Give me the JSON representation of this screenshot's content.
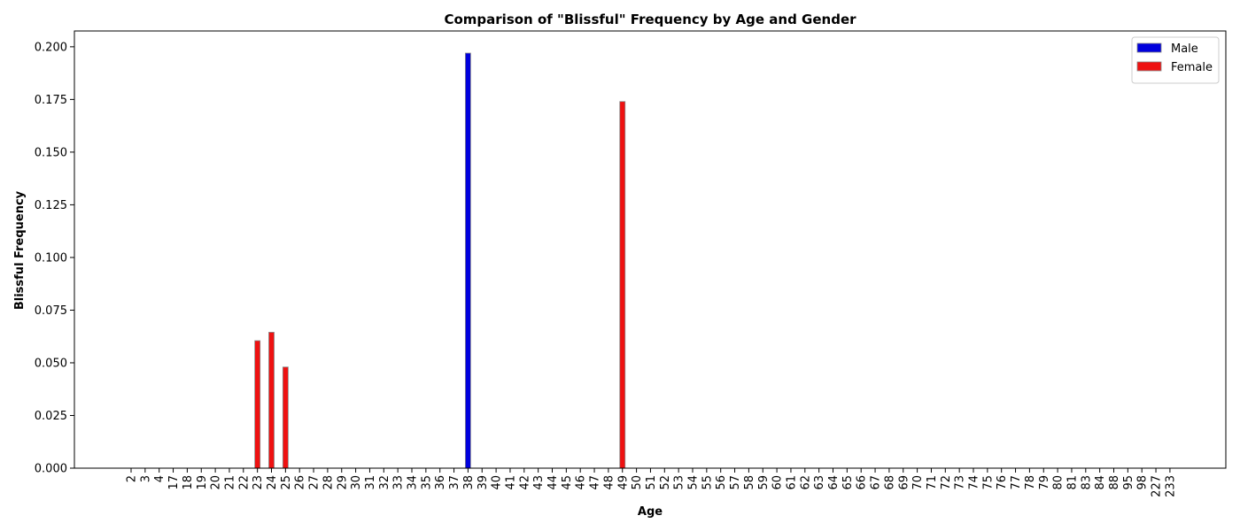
{
  "chart_data": {
    "type": "bar",
    "title": "Comparison of \"Blissful\" Frequency by Age and Gender",
    "xlabel": "Age",
    "ylabel": "Blissful Frequency",
    "ylim": [
      0,
      0.2075
    ],
    "yticks": [
      "0.000",
      "0.025",
      "0.050",
      "0.075",
      "0.100",
      "0.125",
      "0.150",
      "0.175",
      "0.200"
    ],
    "ytick_values": [
      0,
      0.025,
      0.05,
      0.075,
      0.1,
      0.125,
      0.15,
      0.175,
      0.2
    ],
    "categories": [
      "2",
      "3",
      "4",
      "17",
      "18",
      "19",
      "20",
      "21",
      "22",
      "23",
      "24",
      "25",
      "26",
      "27",
      "28",
      "29",
      "30",
      "31",
      "32",
      "33",
      "34",
      "35",
      "36",
      "37",
      "38",
      "39",
      "40",
      "41",
      "42",
      "43",
      "44",
      "45",
      "46",
      "47",
      "48",
      "49",
      "50",
      "51",
      "52",
      "53",
      "54",
      "55",
      "56",
      "57",
      "58",
      "59",
      "60",
      "61",
      "62",
      "63",
      "64",
      "65",
      "66",
      "67",
      "68",
      "69",
      "70",
      "71",
      "72",
      "73",
      "74",
      "75",
      "76",
      "77",
      "78",
      "79",
      "80",
      "81",
      "83",
      "84",
      "88",
      "95",
      "98",
      "227",
      "233"
    ],
    "series": [
      {
        "name": "Male",
        "color": "#0000dd",
        "values": [
          0,
          0,
          0,
          0,
          0,
          0,
          0,
          0,
          0,
          0,
          0,
          0,
          0,
          0,
          0,
          0,
          0,
          0,
          0,
          0,
          0,
          0,
          0,
          0,
          0.197,
          0,
          0,
          0,
          0,
          0,
          0,
          0,
          0,
          0,
          0,
          0,
          0,
          0,
          0,
          0,
          0,
          0,
          0,
          0,
          0,
          0,
          0,
          0,
          0,
          0,
          0,
          0,
          0,
          0,
          0,
          0,
          0,
          0,
          0,
          0,
          0,
          0,
          0,
          0,
          0,
          0,
          0,
          0,
          0,
          0,
          0,
          0,
          0,
          0,
          0
        ]
      },
      {
        "name": "Female",
        "color": "#ee1111",
        "values": [
          0,
          0,
          0,
          0,
          0,
          0,
          0,
          0,
          0,
          0.0605,
          0.0645,
          0.048,
          0,
          0,
          0,
          0,
          0,
          0,
          0,
          0,
          0,
          0,
          0,
          0,
          0,
          0,
          0,
          0,
          0,
          0,
          0,
          0,
          0,
          0,
          0,
          0.174,
          0,
          0,
          0,
          0,
          0,
          0,
          0,
          0,
          0,
          0,
          0,
          0,
          0,
          0,
          0,
          0,
          0,
          0,
          0,
          0,
          0,
          0,
          0,
          0,
          0,
          0,
          0,
          0,
          0,
          0,
          0,
          0,
          0,
          0,
          0,
          0,
          0,
          0,
          0
        ]
      }
    ],
    "legend": {
      "position": "top-right"
    },
    "grid": false
  }
}
